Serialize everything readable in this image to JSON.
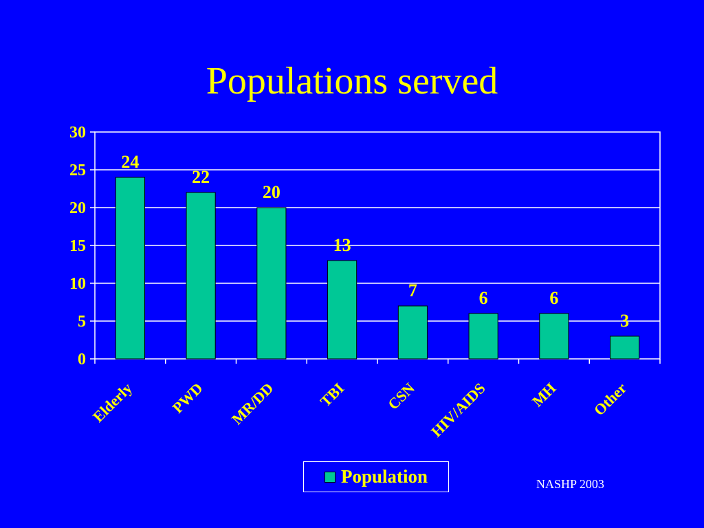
{
  "colors": {
    "background": "#0000FF",
    "text": "#FFFF00",
    "bar": "#00C896",
    "bar_border": "#000000",
    "grid": "#FFFFFF"
  },
  "source_note": "NASHP 2003",
  "chart_data": {
    "type": "bar",
    "title": "Populations served",
    "categories": [
      "Elderly",
      "PWD",
      "MR/DD",
      "TBI",
      "CSN",
      "HIV/AIDS",
      "MH",
      "Other"
    ],
    "series": [
      {
        "name": "Population",
        "values": [
          24,
          22,
          20,
          13,
          7,
          6,
          6,
          3
        ]
      }
    ],
    "y_ticks": [
      0,
      5,
      10,
      15,
      20,
      25,
      30
    ],
    "ylim": [
      0,
      30
    ],
    "grid": true,
    "legend": "bottom",
    "data_labels": true
  }
}
